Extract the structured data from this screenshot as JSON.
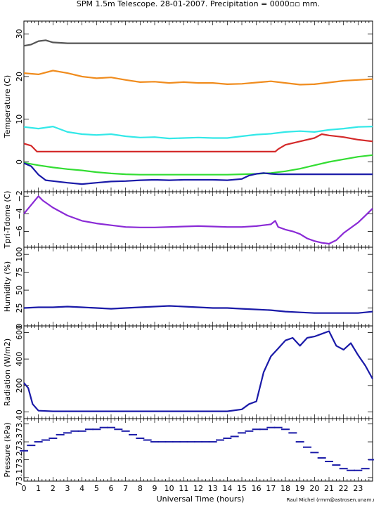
{
  "title": "SPM 1.5m Telescope. 28-01-2007. Precipitation = 0000▫▫ mm.",
  "credit": "Raul Michel (rmm@astrosen.unam.mx)",
  "chart_data": [
    {
      "type": "line",
      "ylabel": "Temperature (C)",
      "ylim": [
        -7,
        33
      ],
      "yticks": [
        0,
        10,
        20,
        30
      ],
      "series": [
        {
          "color": "#555555",
          "x": [
            0,
            0.5,
            1,
            1.5,
            2,
            2.5,
            3,
            4,
            6,
            8,
            10,
            12,
            14,
            16,
            18,
            20,
            22,
            24
          ],
          "y": [
            27.2,
            27.5,
            28.3,
            28.5,
            28.0,
            27.9,
            27.8,
            27.8,
            27.8,
            27.8,
            27.8,
            27.8,
            27.8,
            27.8,
            27.8,
            27.8,
            27.8,
            27.8
          ]
        },
        {
          "color": "#f08c1e",
          "x": [
            0,
            1,
            2,
            3,
            4,
            5,
            6,
            7,
            8,
            9,
            10,
            11,
            12,
            13,
            14,
            15,
            16,
            17,
            18,
            19,
            20,
            21,
            22,
            23,
            24
          ],
          "y": [
            20.8,
            20.5,
            21.4,
            20.8,
            20.0,
            19.6,
            19.8,
            19.2,
            18.7,
            18.8,
            18.5,
            18.7,
            18.5,
            18.5,
            18.2,
            18.3,
            18.6,
            18.9,
            18.5,
            18.1,
            18.2,
            18.6,
            19.0,
            19.2,
            19.4
          ]
        },
        {
          "color": "#33e8e8",
          "x": [
            0,
            1,
            2,
            3,
            4,
            5,
            6,
            7,
            8,
            9,
            10,
            11,
            12,
            13,
            14,
            15,
            16,
            17,
            18,
            19,
            20,
            21,
            22,
            23,
            24
          ],
          "y": [
            8.2,
            7.8,
            8.3,
            7.0,
            6.5,
            6.3,
            6.5,
            6.0,
            5.7,
            5.8,
            5.5,
            5.6,
            5.7,
            5.6,
            5.6,
            6.0,
            6.4,
            6.6,
            7.0,
            7.2,
            7.0,
            7.5,
            7.8,
            8.2,
            8.3
          ]
        },
        {
          "color": "#d42a2a",
          "x": [
            0,
            0.5,
            0.9,
            1,
            4,
            8,
            12,
            16,
            17.3,
            17.5,
            18,
            19,
            20,
            20.5,
            21,
            22,
            23,
            24
          ],
          "y": [
            4.3,
            3.8,
            2.4,
            2.4,
            2.4,
            2.4,
            2.4,
            2.4,
            2.4,
            3.0,
            4.0,
            4.8,
            5.6,
            6.5,
            6.2,
            5.8,
            5.2,
            4.8
          ]
        },
        {
          "color": "#33dd33",
          "x": [
            0,
            1,
            2,
            3,
            4,
            5,
            6,
            7,
            8,
            10,
            12,
            14,
            15,
            16,
            17,
            18,
            19,
            20,
            21,
            22,
            23,
            24
          ],
          "y": [
            -0.2,
            -0.8,
            -1.3,
            -1.7,
            -2.0,
            -2.4,
            -2.7,
            -2.9,
            -3.0,
            -3.0,
            -3.0,
            -3.0,
            -2.9,
            -2.8,
            -2.6,
            -2.2,
            -1.6,
            -0.8,
            0.0,
            0.6,
            1.2,
            1.6
          ]
        },
        {
          "color": "#1a1aa8",
          "x": [
            0,
            0.5,
            1,
            1.5,
            2,
            3,
            4,
            5,
            6,
            7,
            8,
            9,
            10,
            11,
            12,
            13,
            14,
            15,
            15.5,
            16,
            16.5,
            17,
            17.5,
            18,
            20,
            22,
            24
          ],
          "y": [
            -0.3,
            -1.0,
            -3.0,
            -4.3,
            -4.5,
            -4.9,
            -5.2,
            -4.9,
            -4.6,
            -4.5,
            -4.3,
            -4.2,
            -4.3,
            -4.2,
            -4.2,
            -4.2,
            -4.3,
            -4.0,
            -3.2,
            -2.8,
            -2.6,
            -2.8,
            -2.9,
            -2.9,
            -2.9,
            -2.9,
            -2.9
          ]
        }
      ]
    },
    {
      "type": "line",
      "ylabel": "Tpri-Tdome (C)",
      "ylim": [
        -7.8,
        -1.5
      ],
      "yticks": [
        -6,
        -4,
        -2
      ],
      "series": [
        {
          "color": "#8a2ad6",
          "x": [
            0,
            0.4,
            0.8,
            1,
            1.3,
            2,
            3,
            4,
            5,
            6,
            7,
            8,
            9,
            10,
            11,
            12,
            13,
            14,
            15,
            16,
            17,
            17.3,
            17.5,
            18,
            18.5,
            19,
            19.5,
            20,
            20.5,
            21,
            21.5,
            22,
            22.5,
            23,
            23.5,
            24
          ],
          "y": [
            -4.0,
            -3.2,
            -2.4,
            -2.0,
            -2.5,
            -3.3,
            -4.2,
            -4.8,
            -5.1,
            -5.3,
            -5.5,
            -5.55,
            -5.55,
            -5.5,
            -5.45,
            -5.4,
            -5.45,
            -5.5,
            -5.5,
            -5.4,
            -5.2,
            -4.8,
            -5.5,
            -5.8,
            -6.0,
            -6.3,
            -6.8,
            -7.1,
            -7.3,
            -7.4,
            -7.0,
            -6.2,
            -5.6,
            -5.0,
            -4.2,
            -3.4
          ]
        }
      ]
    },
    {
      "type": "line",
      "ylabel": "Humidity (%)",
      "ylim": [
        0,
        110
      ],
      "yticks": [
        0,
        25,
        50,
        75,
        100
      ],
      "series": [
        {
          "color": "#1a1aa8",
          "x": [
            0,
            1,
            2,
            3,
            4,
            5,
            6,
            7,
            8,
            9,
            10,
            11,
            12,
            13,
            14,
            15,
            16,
            17,
            18,
            19,
            20,
            21,
            22,
            23,
            23.5,
            24
          ],
          "y": [
            25,
            26,
            26,
            27,
            26,
            25,
            24,
            25,
            26,
            27,
            28,
            27,
            26,
            25,
            25,
            24,
            23,
            22,
            20,
            19,
            18,
            18,
            18,
            18,
            19,
            20
          ]
        }
      ]
    },
    {
      "type": "line",
      "ylabel": "Radiation (W/m2)",
      "ylim": [
        -50,
        650
      ],
      "yticks": [
        0,
        200,
        400,
        600
      ],
      "series": [
        {
          "color": "#1a1aa8",
          "x": [
            0,
            0.3,
            0.6,
            1,
            2,
            4,
            6,
            8,
            10,
            12,
            14,
            15,
            15.5,
            16,
            16.5,
            17,
            17.5,
            18,
            18.5,
            19,
            19.5,
            20,
            20.5,
            21,
            21.5,
            22,
            22.5,
            23,
            23.5,
            24
          ],
          "y": [
            220,
            180,
            60,
            10,
            5,
            5,
            5,
            5,
            5,
            5,
            5,
            20,
            60,
            80,
            300,
            420,
            480,
            540,
            560,
            500,
            560,
            570,
            590,
            610,
            500,
            470,
            520,
            430,
            350,
            250
          ]
        }
      ]
    },
    {
      "type": "scatter",
      "ylabel": "Pressure (kPa)",
      "ylim": [
        73.08,
        73.43
      ],
      "yticks": [
        73.1,
        73.2,
        73.3,
        73.4
      ],
      "series": [
        {
          "color": "#1a1aa8",
          "x": [
            0,
            0.5,
            1,
            1.5,
            2,
            2.5,
            3,
            3.5,
            4,
            4.5,
            5,
            5.5,
            6,
            6.5,
            7,
            7.5,
            8,
            8.5,
            9,
            9.5,
            10,
            10.5,
            11,
            11.5,
            12,
            12.5,
            13,
            13.5,
            14,
            14.5,
            15,
            15.5,
            16,
            16.5,
            17,
            17.5,
            18,
            18.5,
            19,
            19.5,
            20,
            20.5,
            21,
            21.5,
            22,
            22.5,
            23,
            23.5,
            24
          ],
          "y": [
            73.25,
            73.28,
            73.3,
            73.31,
            73.32,
            73.34,
            73.35,
            73.36,
            73.36,
            73.37,
            73.37,
            73.38,
            73.38,
            73.37,
            73.36,
            73.34,
            73.32,
            73.31,
            73.3,
            73.3,
            73.3,
            73.3,
            73.3,
            73.3,
            73.3,
            73.3,
            73.3,
            73.31,
            73.32,
            73.33,
            73.35,
            73.36,
            73.37,
            73.37,
            73.38,
            73.38,
            73.37,
            73.35,
            73.3,
            73.27,
            73.24,
            73.21,
            73.19,
            73.17,
            73.15,
            73.14,
            73.14,
            73.15,
            73.2
          ]
        }
      ]
    }
  ],
  "xaxis": {
    "label": "Universal Time (hours)",
    "xlim": [
      0,
      24
    ],
    "ticks": [
      0,
      1,
      2,
      3,
      4,
      5,
      6,
      7,
      8,
      9,
      10,
      11,
      12,
      13,
      14,
      15,
      16,
      17,
      18,
      19,
      20,
      21,
      22,
      23
    ]
  }
}
